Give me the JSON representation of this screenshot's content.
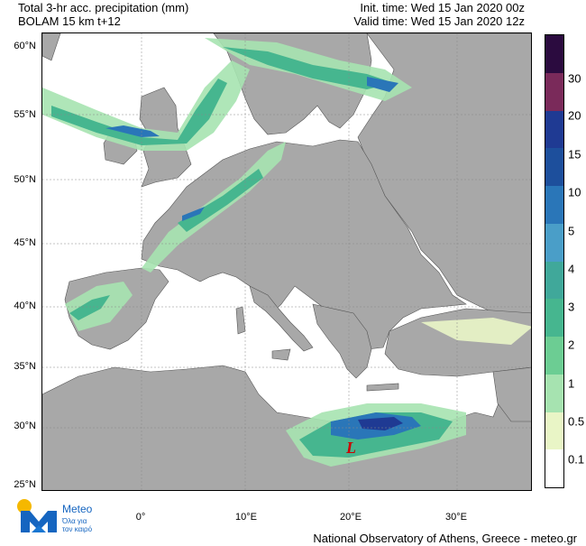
{
  "header": {
    "title_line1": "Total 3-hr acc. precipitation (mm)",
    "title_line2": "BOLAM 15 km t+12",
    "init_time": "Init. time: Wed 15 Jan 2020 00z",
    "valid_time": "Valid time: Wed 15 Jan 2020 12z"
  },
  "axes": {
    "lat_labels": [
      "60°N",
      "55°N",
      "50°N",
      "45°N",
      "40°N",
      "35°N",
      "30°N",
      "25°N"
    ],
    "lon_labels": [
      "0°",
      "10°E",
      "20°E",
      "30°E"
    ]
  },
  "low_marker": "L",
  "colorbar": {
    "labels": [
      "30",
      "20",
      "15",
      "10",
      "5",
      "4",
      "3",
      "2",
      "1",
      "0.5",
      "0.1"
    ],
    "colors": [
      "#2b0b3f",
      "#7a2a5a",
      "#1f3a93",
      "#1d4f9c",
      "#2a76b8",
      "#4a9ec8",
      "#40a89a",
      "#46b68f",
      "#6ccd93",
      "#a6e3b0",
      "#e9f5c6",
      "#ffffff"
    ]
  },
  "logo": {
    "brand": "Meteo",
    "tagline_1": "Όλα για",
    "tagline_2": "τον καιρό"
  },
  "footer": "National Observatory of Athens, Greece - meteo.gr",
  "colors": {
    "land": "#a8a8a8",
    "sea": "#ffffff",
    "border": "#555555",
    "text": "#000000"
  }
}
